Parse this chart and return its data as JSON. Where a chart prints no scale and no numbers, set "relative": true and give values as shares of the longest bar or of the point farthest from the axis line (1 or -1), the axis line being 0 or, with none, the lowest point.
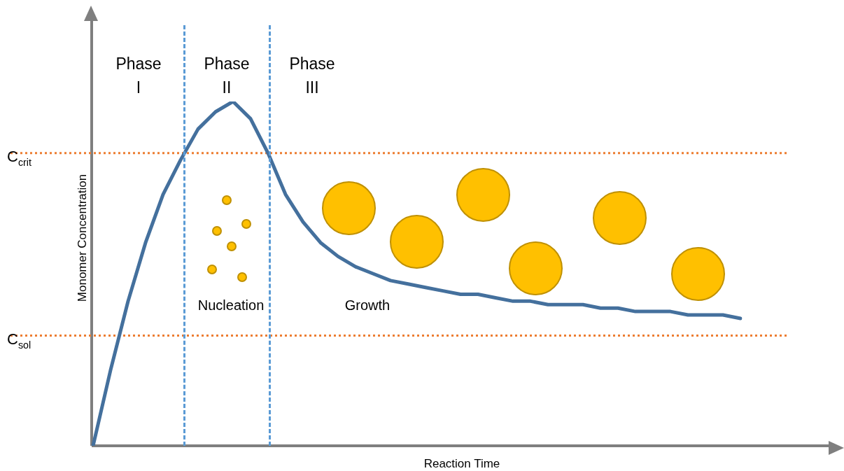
{
  "chart_data": {
    "type": "line",
    "relative": true,
    "xlabel": "Reaction Time",
    "ylabel": "Monomer Concentration",
    "categories": [
      null,
      null,
      null,
      null,
      null,
      null,
      null,
      null,
      null,
      null,
      null,
      null,
      null,
      null,
      null,
      null,
      null,
      null,
      null,
      null,
      null,
      null,
      null,
      null,
      null,
      null,
      null,
      null,
      null,
      null,
      null,
      null,
      null,
      null,
      null,
      null,
      null,
      null
    ],
    "values": [
      0,
      0.22,
      0.42,
      0.59,
      0.73,
      0.83,
      0.92,
      0.97,
      1.0,
      0.95,
      0.85,
      0.73,
      0.65,
      0.59,
      0.55,
      0.52,
      0.5,
      0.48,
      0.47,
      0.46,
      0.45,
      0.44,
      0.44,
      0.43,
      0.42,
      0.42,
      0.41,
      0.41,
      0.41,
      0.4,
      0.4,
      0.39,
      0.39,
      0.39,
      0.38,
      0.38,
      0.38,
      0.37
    ],
    "color": "#44709d",
    "marker": "none",
    "line_style": "solid",
    "ref_lines": [
      {
        "axis": "y",
        "value": 0.85,
        "label": "C$_{crit}$",
        "color": "#ed7d31",
        "line_style": "dotted"
      },
      {
        "axis": "y",
        "value": 0.32,
        "label": "C$_{sol}$",
        "color": "#ed7d31",
        "line_style": "dotted"
      }
    ],
    "annotations": [
      "Phase I",
      "Phase II",
      "Phase III",
      "Nucleation",
      "Growth"
    ]
  }
}
